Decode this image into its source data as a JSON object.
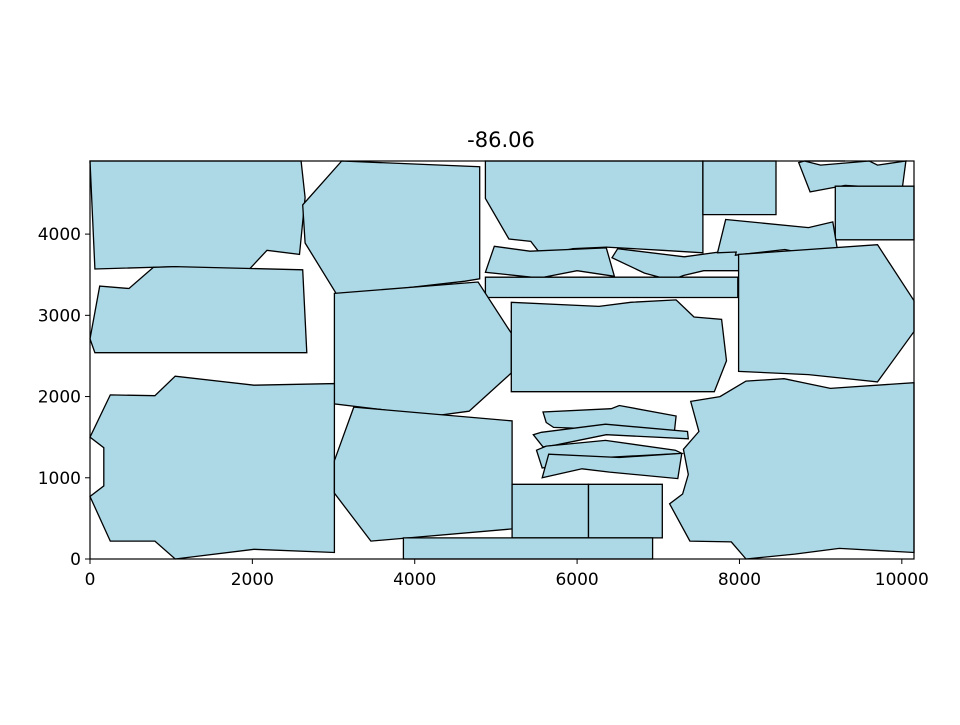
{
  "chart_data": {
    "type": "polygon-layout",
    "title": "-86.06",
    "xlabel": "",
    "ylabel": "",
    "xlim": [
      0,
      10150
    ],
    "ylim": [
      0,
      4900
    ],
    "xticks": [
      0,
      2000,
      4000,
      6000,
      8000,
      10000
    ],
    "yticks": [
      0,
      1000,
      2000,
      3000,
      4000
    ],
    "grid": false,
    "colors": {
      "fill": "#add8e6",
      "edge": "#000000"
    },
    "polygons": [
      [
        [
          0,
          4900
        ],
        [
          2600,
          4900
        ],
        [
          2650,
          4450
        ],
        [
          2580,
          3750
        ],
        [
          2180,
          3800
        ],
        [
          1900,
          3500
        ],
        [
          1050,
          3600
        ],
        [
          60,
          3570
        ]
      ],
      [
        [
          3100,
          4900
        ],
        [
          4800,
          4830
        ],
        [
          4800,
          3450
        ],
        [
          4620,
          3420
        ],
        [
          3050,
          3240
        ],
        [
          2650,
          3890
        ],
        [
          2620,
          4360
        ]
      ],
      [
        [
          4870,
          4900
        ],
        [
          7550,
          4900
        ],
        [
          7550,
          3770
        ],
        [
          7050,
          3800
        ],
        [
          6360,
          3840
        ],
        [
          5950,
          3820
        ],
        [
          5560,
          3740
        ],
        [
          5430,
          3910
        ],
        [
          5160,
          3940
        ],
        [
          4870,
          4440
        ]
      ],
      [
        [
          7550,
          4900
        ],
        [
          8450,
          4900
        ],
        [
          8450,
          4240
        ],
        [
          7550,
          4240
        ]
      ],
      [
        [
          8800,
          4900
        ],
        [
          9300,
          4900
        ],
        [
          8800,
          4900
        ],
        [
          9000,
          4850
        ],
        [
          9600,
          4900
        ],
        [
          9700,
          4850
        ],
        [
          10050,
          4900
        ],
        [
          10000,
          4520
        ],
        [
          9650,
          4580
        ],
        [
          9300,
          4600
        ],
        [
          8870,
          4520
        ],
        [
          8730,
          4880
        ]
      ],
      [
        [
          9180,
          4590
        ],
        [
          10150,
          4590
        ],
        [
          10150,
          3930
        ],
        [
          9180,
          3930
        ]
      ],
      [
        [
          4980,
          3850
        ],
        [
          5420,
          3790
        ],
        [
          6360,
          3830
        ],
        [
          6460,
          3480
        ],
        [
          6000,
          3550
        ],
        [
          5540,
          3460
        ],
        [
          4870,
          3530
        ]
      ],
      [
        [
          6500,
          3820
        ],
        [
          7320,
          3720
        ],
        [
          8050,
          3820
        ],
        [
          8200,
          3740
        ],
        [
          7980,
          3550
        ],
        [
          7560,
          3550
        ],
        [
          7310,
          3490
        ],
        [
          7230,
          3460
        ],
        [
          7350,
          3380
        ],
        [
          6830,
          3520
        ],
        [
          6430,
          3710
        ]
      ],
      [
        [
          7830,
          4180
        ],
        [
          8850,
          4080
        ],
        [
          9150,
          4150
        ],
        [
          9210,
          3790
        ],
        [
          8950,
          3730
        ],
        [
          8560,
          3810
        ],
        [
          7950,
          3740
        ],
        [
          7960,
          3780
        ],
        [
          7730,
          3770
        ]
      ],
      [
        [
          4870,
          3470
        ],
        [
          7980,
          3470
        ],
        [
          7980,
          3220
        ],
        [
          4870,
          3220
        ]
      ],
      [
        [
          7990,
          3750
        ],
        [
          9700,
          3870
        ],
        [
          10150,
          3180
        ],
        [
          10150,
          2800
        ],
        [
          9700,
          2180
        ],
        [
          8850,
          2270
        ],
        [
          7990,
          2310
        ]
      ],
      [
        [
          60,
          2540
        ],
        [
          2670,
          2540
        ],
        [
          2620,
          3560
        ],
        [
          1050,
          3600
        ],
        [
          780,
          3590
        ],
        [
          480,
          3330
        ],
        [
          120,
          3360
        ],
        [
          0,
          2710
        ]
      ],
      [
        [
          3010,
          3270
        ],
        [
          4780,
          3410
        ],
        [
          5190,
          2780
        ],
        [
          5190,
          2290
        ],
        [
          4670,
          1820
        ],
        [
          4230,
          1760
        ],
        [
          3920,
          1800
        ],
        [
          3010,
          1910
        ]
      ],
      [
        [
          5190,
          2060
        ],
        [
          7690,
          2060
        ],
        [
          7840,
          2440
        ],
        [
          7780,
          2950
        ],
        [
          7440,
          2980
        ],
        [
          7220,
          3190
        ],
        [
          6660,
          3160
        ],
        [
          6270,
          3110
        ],
        [
          5190,
          3160
        ]
      ],
      [
        [
          5620,
          1680
        ],
        [
          5710,
          1620
        ],
        [
          6260,
          1600
        ],
        [
          7200,
          1580
        ],
        [
          7220,
          1760
        ],
        [
          6520,
          1890
        ],
        [
          6420,
          1850
        ],
        [
          5580,
          1810
        ]
      ],
      [
        [
          5560,
          1560
        ],
        [
          6350,
          1660
        ],
        [
          7360,
          1570
        ],
        [
          7370,
          1480
        ],
        [
          6360,
          1530
        ],
        [
          5720,
          1400
        ],
        [
          5580,
          1380
        ],
        [
          5460,
          1530
        ]
      ],
      [
        [
          5620,
          1390
        ],
        [
          6350,
          1460
        ],
        [
          7210,
          1340
        ],
        [
          7290,
          1300
        ],
        [
          6330,
          1250
        ],
        [
          5570,
          1120
        ],
        [
          5500,
          1340
        ]
      ],
      [
        [
          5570,
          1000
        ],
        [
          6060,
          1110
        ],
        [
          6400,
          1070
        ],
        [
          7240,
          990
        ],
        [
          7290,
          1300
        ],
        [
          6520,
          1250
        ],
        [
          5650,
          1290
        ]
      ],
      [
        [
          0,
          1500
        ],
        [
          250,
          2020
        ],
        [
          800,
          2010
        ],
        [
          1050,
          2250
        ],
        [
          2020,
          2140
        ],
        [
          3010,
          2160
        ],
        [
          3010,
          80
        ],
        [
          2020,
          120
        ],
        [
          1050,
          0
        ],
        [
          800,
          220
        ],
        [
          250,
          220
        ],
        [
          0,
          770
        ],
        [
          170,
          900
        ],
        [
          170,
          1370
        ]
      ],
      [
        [
          3010,
          1210
        ],
        [
          3250,
          1870
        ],
        [
          5200,
          1700
        ],
        [
          5200,
          370
        ],
        [
          3460,
          220
        ],
        [
          3010,
          810
        ]
      ],
      [
        [
          5200,
          920
        ],
        [
          6140,
          920
        ],
        [
          6140,
          260
        ],
        [
          5200,
          260
        ]
      ],
      [
        [
          6140,
          920
        ],
        [
          7050,
          920
        ],
        [
          7050,
          260
        ],
        [
          6140,
          260
        ]
      ],
      [
        [
          3860,
          260
        ],
        [
          6930,
          260
        ],
        [
          6930,
          0
        ],
        [
          3860,
          0
        ]
      ],
      [
        [
          7310,
          1350
        ],
        [
          7500,
          1570
        ],
        [
          7400,
          1940
        ],
        [
          7760,
          2000
        ],
        [
          8080,
          2190
        ],
        [
          8550,
          2220
        ],
        [
          9120,
          2100
        ],
        [
          10150,
          2170
        ],
        [
          10150,
          80
        ],
        [
          9230,
          130
        ],
        [
          8680,
          60
        ],
        [
          8080,
          0
        ],
        [
          7900,
          210
        ],
        [
          7390,
          220
        ],
        [
          7140,
          680
        ],
        [
          7300,
          800
        ],
        [
          7370,
          1040
        ]
      ]
    ]
  }
}
